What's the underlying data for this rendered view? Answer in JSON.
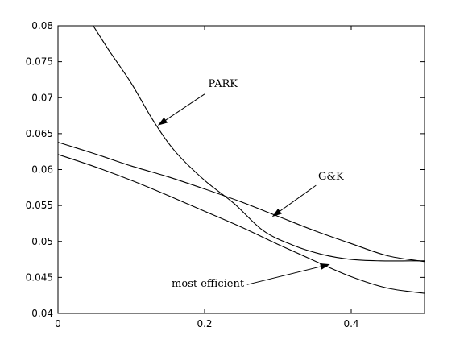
{
  "chart_data": {
    "type": "line",
    "title": "",
    "xlabel": "",
    "ylabel": "",
    "xlim": [
      0,
      0.5
    ],
    "ylim": [
      0.04,
      0.08
    ],
    "grid": false,
    "legend": "none",
    "x_ticks": [
      0,
      0.2,
      0.4
    ],
    "x_tick_labels": [
      "0",
      "0.2",
      "0.4"
    ],
    "y_ticks": [
      0.04,
      0.045,
      0.05,
      0.055,
      0.06,
      0.065,
      0.07,
      0.075,
      0.08
    ],
    "y_tick_labels": [
      "0.04",
      "0.045",
      "0.05",
      "0.055",
      "0.06",
      "0.065",
      "0.07",
      "0.075",
      "0.08"
    ],
    "line_color": "#000000",
    "series": [
      {
        "name": "PARK",
        "x": [
          0.048,
          0.07,
          0.1,
          0.13,
          0.16,
          0.2,
          0.24,
          0.28,
          0.32,
          0.36,
          0.4,
          0.44,
          0.48,
          0.5
        ],
        "y": [
          0.08,
          0.0765,
          0.072,
          0.0668,
          0.0625,
          0.0585,
          0.0553,
          0.0515,
          0.0495,
          0.0482,
          0.0475,
          0.0473,
          0.0473,
          0.0473
        ]
      },
      {
        "name": "G&K",
        "x": [
          0,
          0.05,
          0.1,
          0.15,
          0.2,
          0.25,
          0.3,
          0.35,
          0.4,
          0.45,
          0.5
        ],
        "y": [
          0.0638,
          0.0622,
          0.0605,
          0.059,
          0.0573,
          0.0555,
          0.0535,
          0.0515,
          0.0497,
          0.048,
          0.0472
        ]
      },
      {
        "name": "most efficient",
        "x": [
          0,
          0.05,
          0.1,
          0.15,
          0.2,
          0.25,
          0.3,
          0.35,
          0.4,
          0.45,
          0.5
        ],
        "y": [
          0.0621,
          0.0604,
          0.0585,
          0.0564,
          0.0542,
          0.052,
          0.0496,
          0.0473,
          0.0451,
          0.0435,
          0.0428
        ]
      }
    ],
    "annotations": [
      {
        "text": "PARK",
        "label_at": [
          0.205,
          0.0715
        ],
        "arrow_from": [
          0.2,
          0.0705
        ],
        "arrow_to": [
          0.137,
          0.0662
        ]
      },
      {
        "text": "G&K",
        "label_at": [
          0.355,
          0.0586
        ],
        "arrow_from": [
          0.352,
          0.0578
        ],
        "arrow_to": [
          0.293,
          0.0535
        ]
      },
      {
        "text": "most efficient",
        "label_at": [
          0.155,
          0.0437
        ],
        "arrow_from": [
          0.258,
          0.044
        ],
        "arrow_to": [
          0.37,
          0.0468
        ]
      }
    ]
  }
}
